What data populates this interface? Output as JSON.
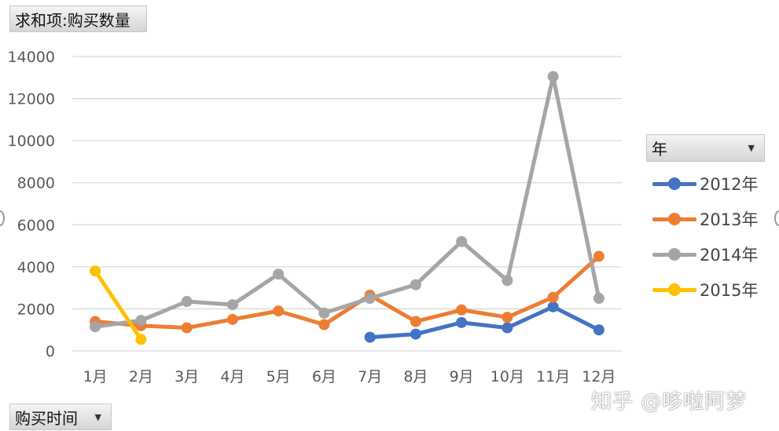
{
  "pivot": {
    "value_field_label": "求和项:购买数量",
    "axis_field_label": "购买时间",
    "legend_field_label": "年"
  },
  "icons": {
    "dropdown": "dropdown-arrow-icon"
  },
  "watermark": "知乎 @哆啦阿梦",
  "colors": {
    "2012年": "#4472C4",
    "2013年": "#ED7D31",
    "2014年": "#A5A5A5",
    "2015年": "#FFC000",
    "gridline": "#d9d9d9",
    "tick_text": "#595959"
  },
  "chart_data": {
    "type": "line",
    "title": "",
    "xlabel": "",
    "ylabel": "",
    "categories": [
      "1月",
      "2月",
      "3月",
      "4月",
      "5月",
      "6月",
      "7月",
      "8月",
      "9月",
      "10月",
      "11月",
      "12月"
    ],
    "ylim": [
      0,
      14000
    ],
    "yticks": [
      0,
      2000,
      4000,
      6000,
      8000,
      10000,
      12000,
      14000
    ],
    "grid": true,
    "legend_position": "right",
    "series": [
      {
        "name": "2012年",
        "color": "#4472C4",
        "values": [
          null,
          null,
          null,
          null,
          null,
          null,
          650,
          800,
          1350,
          1100,
          2100,
          1000
        ]
      },
      {
        "name": "2013年",
        "color": "#ED7D31",
        "values": [
          1400,
          1200,
          1100,
          1500,
          1900,
          1250,
          2650,
          1400,
          1950,
          1600,
          2550,
          4500
        ]
      },
      {
        "name": "2014年",
        "color": "#A5A5A5",
        "values": [
          1150,
          1450,
          2350,
          2200,
          3650,
          1800,
          2500,
          3150,
          5200,
          3350,
          13050,
          2500
        ]
      },
      {
        "name": "2015年",
        "color": "#FFC000",
        "values": [
          3800,
          550,
          null,
          null,
          null,
          null,
          null,
          null,
          null,
          null,
          null,
          null
        ]
      }
    ]
  }
}
